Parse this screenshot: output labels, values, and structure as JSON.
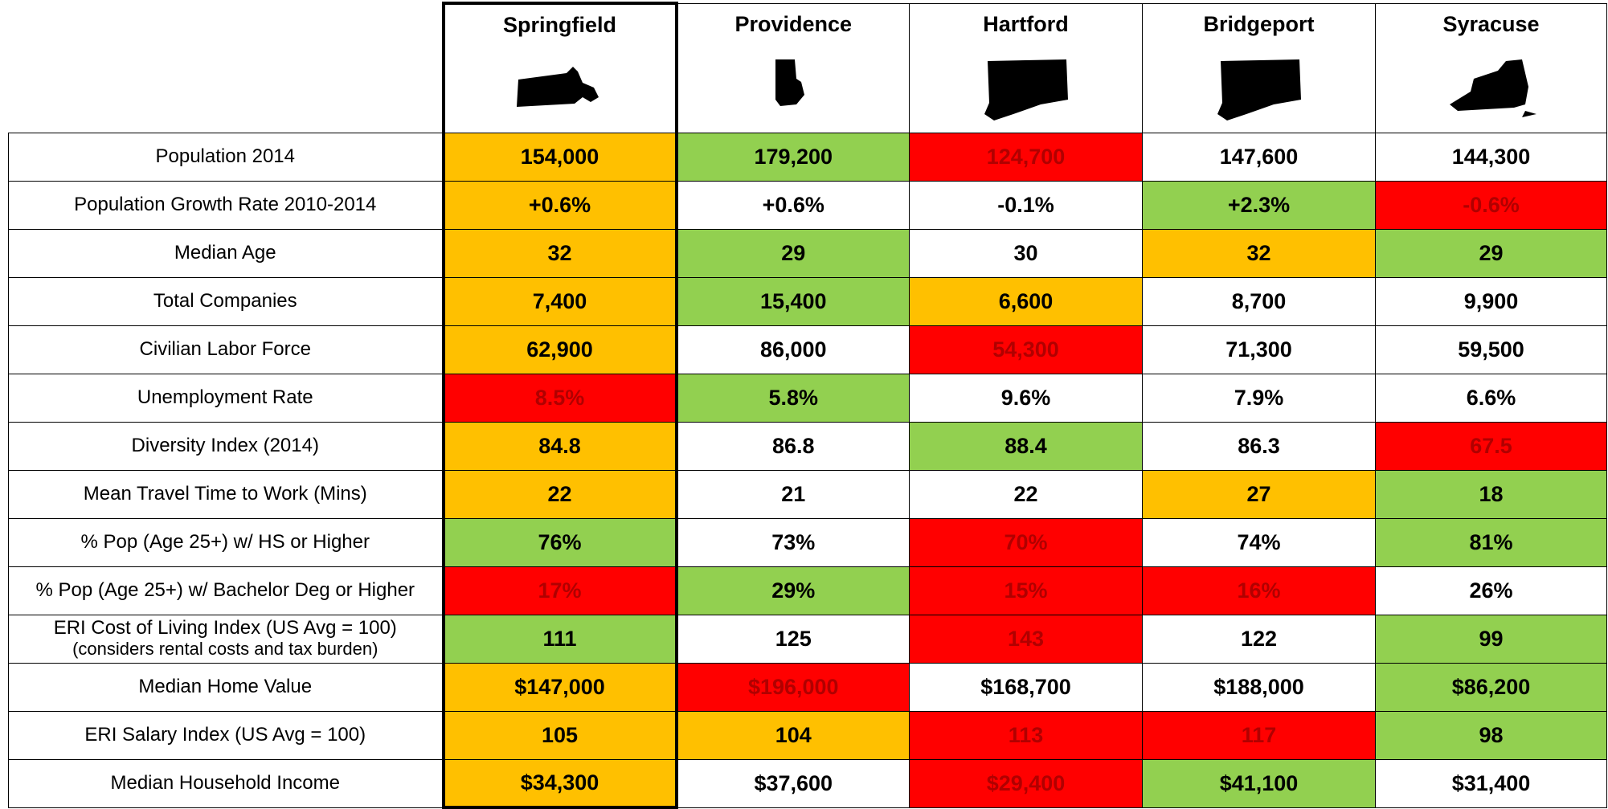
{
  "table": {
    "columns": [
      "Springfield",
      "Providence",
      "Hartford",
      "Bridgeport",
      "Syracuse"
    ],
    "rows": [
      {
        "label": "Population 2014",
        "cells": [
          "154,000",
          "179,200",
          "124,700",
          "147,600",
          "144,300"
        ],
        "fills": [
          "#ffc000",
          "#92d050",
          "#ff0000",
          "#ffffff",
          "#ffffff"
        ]
      },
      {
        "label": "Population Growth Rate 2010-2014",
        "cells": [
          "+0.6%",
          "+0.6%",
          "-0.1%",
          "+2.3%",
          "-0.6%"
        ],
        "fills": [
          "#ffc000",
          "#ffffff",
          "#ffffff",
          "#92d050",
          "#ff0000"
        ]
      },
      {
        "label": "Median Age",
        "cells": [
          "32",
          "29",
          "30",
          "32",
          "29"
        ],
        "fills": [
          "#ffc000",
          "#92d050",
          "#ffffff",
          "#ffc000",
          "#92d050"
        ]
      },
      {
        "label": "Total Companies",
        "cells": [
          "7,400",
          "15,400",
          "6,600",
          "8,700",
          "9,900"
        ],
        "fills": [
          "#ffc000",
          "#92d050",
          "#ffc000",
          "#ffffff",
          "#ffffff"
        ]
      },
      {
        "label": "Civilian Labor Force",
        "cells": [
          "62,900",
          "86,000",
          "54,300",
          "71,300",
          "59,500"
        ],
        "fills": [
          "#ffc000",
          "#ffffff",
          "#ff0000",
          "#ffffff",
          "#ffffff"
        ]
      },
      {
        "label": "Unemployment Rate",
        "cells": [
          "8.5%",
          "5.8%",
          "9.6%",
          "7.9%",
          "6.6%"
        ],
        "fills": [
          "#ff0000",
          "#92d050",
          "#ffffff",
          "#ffffff",
          "#ffffff"
        ]
      },
      {
        "label": "Diversity Index (2014)",
        "cells": [
          "84.8",
          "86.8",
          "88.4",
          "86.3",
          "67.5"
        ],
        "fills": [
          "#ffc000",
          "#ffffff",
          "#92d050",
          "#ffffff",
          "#ff0000"
        ]
      },
      {
        "label": "Mean Travel Time to Work (Mins)",
        "cells": [
          "22",
          "21",
          "22",
          "27",
          "18"
        ],
        "fills": [
          "#ffc000",
          "#ffffff",
          "#ffffff",
          "#ffc000",
          "#92d050"
        ]
      },
      {
        "label": "% Pop (Age 25+) w/ HS or Higher",
        "cells": [
          "76%",
          "73%",
          "70%",
          "74%",
          "81%"
        ],
        "fills": [
          "#92d050",
          "#ffffff",
          "#ff0000",
          "#ffffff",
          "#92d050"
        ]
      },
      {
        "label": "% Pop (Age 25+) w/ Bachelor Deg or Higher",
        "cells": [
          "17%",
          "29%",
          "15%",
          "16%",
          "26%"
        ],
        "fills": [
          "#ff0000",
          "#92d050",
          "#ff0000",
          "#ff0000",
          "#ffffff"
        ]
      },
      {
        "label": "ERI Cost of Living Index (US Avg = 100)",
        "note": "(considers rental costs and tax burden)",
        "cells": [
          "111",
          "125",
          "143",
          "122",
          "99"
        ],
        "fills": [
          "#92d050",
          "#ffffff",
          "#ff0000",
          "#ffffff",
          "#92d050"
        ]
      },
      {
        "label": "Median Home Value",
        "cells": [
          "$147,000",
          "$196,000",
          "$168,700",
          "$188,000",
          "$86,200"
        ],
        "fills": [
          "#ffc000",
          "#ff0000",
          "#ffffff",
          "#ffffff",
          "#92d050"
        ]
      },
      {
        "label": "ERI Salary Index (US Avg = 100)",
        "cells": [
          "105",
          "104",
          "113",
          "117",
          "98"
        ],
        "fills": [
          "#ffc000",
          "#ffc000",
          "#ff0000",
          "#ff0000",
          "#92d050"
        ]
      },
      {
        "label": "Median Household Income",
        "cells": [
          "$34,300",
          "$37,600",
          "$29,400",
          "$41,100",
          "$31,400"
        ],
        "fills": [
          "#ffc000",
          "#ffffff",
          "#ff0000",
          "#92d050",
          "#ffffff"
        ]
      }
    ]
  }
}
